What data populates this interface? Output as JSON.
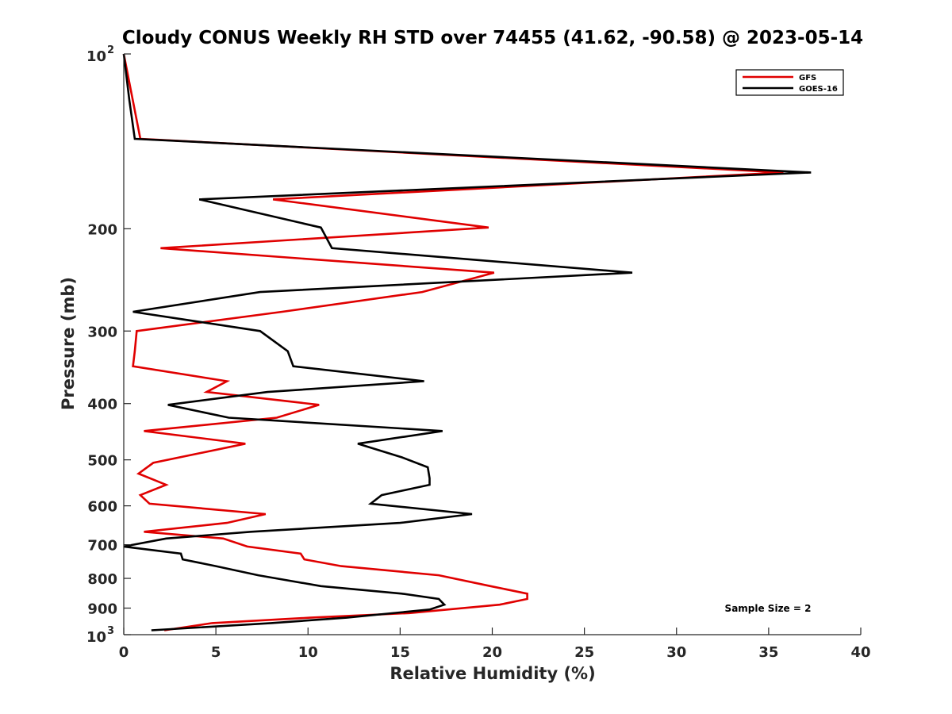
{
  "chart_data": {
    "type": "line",
    "title": "Cloudy CONUS Weekly RH STD over 74455 (41.62, -90.58) @ 2023-05-14",
    "xlabel": "Relative Humidity (%)",
    "ylabel": "Pressure (mb)",
    "xlim": [
      0,
      40
    ],
    "ylim": [
      100,
      1000
    ],
    "yscale": "log",
    "y_reversed": true,
    "xticks": [
      0,
      5,
      10,
      15,
      20,
      25,
      30,
      35,
      40
    ],
    "xtick_labels": [
      "0",
      "5",
      "10",
      "15",
      "20",
      "25",
      "30",
      "35",
      "40"
    ],
    "yticks": [
      {
        "value": 100,
        "base": "10",
        "exp": "2"
      },
      {
        "value": 200,
        "label": "200"
      },
      {
        "value": 300,
        "label": "300"
      },
      {
        "value": 400,
        "label": "400"
      },
      {
        "value": 500,
        "label": "500"
      },
      {
        "value": 600,
        "label": "600"
      },
      {
        "value": 700,
        "label": "700"
      },
      {
        "value": 800,
        "label": "800"
      },
      {
        "value": 900,
        "label": "900"
      },
      {
        "value": 1000,
        "base": "10",
        "exp": "3"
      }
    ],
    "grid": false,
    "legend_position": "top-right",
    "annotation": "Sample Size = 2",
    "series": [
      {
        "name": "GFS",
        "color": "#e00000",
        "points": [
          [
            0.0,
            100
          ],
          [
            0.9,
            140
          ],
          [
            35.8,
            160
          ],
          [
            8.1,
            178
          ],
          [
            19.8,
            199
          ],
          [
            2.0,
            216
          ],
          [
            20.1,
            238
          ],
          [
            16.2,
            257
          ],
          [
            8.6,
            278
          ],
          [
            0.7,
            300
          ],
          [
            0.6,
            325
          ],
          [
            0.5,
            345
          ],
          [
            5.6,
            366
          ],
          [
            4.5,
            382
          ],
          [
            10.6,
            402
          ],
          [
            8.3,
            423
          ],
          [
            1.1,
            446
          ],
          [
            6.6,
            469
          ],
          [
            1.6,
            506
          ],
          [
            0.8,
            528
          ],
          [
            2.3,
            552
          ],
          [
            0.9,
            575
          ],
          [
            1.4,
            595
          ],
          [
            7.7,
            620
          ],
          [
            5.6,
            642
          ],
          [
            1.1,
            665
          ],
          [
            5.4,
            683
          ],
          [
            6.7,
            705
          ],
          [
            9.6,
            725
          ],
          [
            9.8,
            742
          ],
          [
            11.8,
            762
          ],
          [
            17.1,
            790
          ],
          [
            19.9,
            825
          ],
          [
            21.9,
            850
          ],
          [
            21.9,
            868
          ],
          [
            20.4,
            888
          ],
          [
            15.5,
            918
          ],
          [
            10.1,
            935
          ],
          [
            4.8,
            955
          ],
          [
            2.2,
            983
          ]
        ]
      },
      {
        "name": "GOES-16",
        "color": "#000000",
        "points": [
          [
            0.0,
            100
          ],
          [
            0.3,
            120
          ],
          [
            0.6,
            140
          ],
          [
            37.3,
            160
          ],
          [
            4.1,
            178
          ],
          [
            10.7,
            199
          ],
          [
            11.3,
            216
          ],
          [
            27.6,
            238
          ],
          [
            7.4,
            257
          ],
          [
            0.5,
            278
          ],
          [
            7.4,
            300
          ],
          [
            8.9,
            325
          ],
          [
            9.2,
            345
          ],
          [
            16.3,
            366
          ],
          [
            7.8,
            382
          ],
          [
            2.4,
            402
          ],
          [
            5.7,
            423
          ],
          [
            17.3,
            446
          ],
          [
            12.7,
            469
          ],
          [
            15.1,
            495
          ],
          [
            16.5,
            515
          ],
          [
            16.6,
            538
          ],
          [
            16.6,
            552
          ],
          [
            14.0,
            575
          ],
          [
            13.4,
            595
          ],
          [
            18.9,
            620
          ],
          [
            15.0,
            642
          ],
          [
            6.9,
            665
          ],
          [
            2.3,
            683
          ],
          [
            0.0,
            705
          ],
          [
            3.1,
            725
          ],
          [
            3.2,
            742
          ],
          [
            5.0,
            762
          ],
          [
            7.3,
            790
          ],
          [
            10.7,
            825
          ],
          [
            15.1,
            850
          ],
          [
            17.1,
            868
          ],
          [
            17.4,
            888
          ],
          [
            16.6,
            905
          ],
          [
            12.1,
            935
          ],
          [
            8.0,
            955
          ],
          [
            1.5,
            983
          ]
        ]
      }
    ]
  }
}
